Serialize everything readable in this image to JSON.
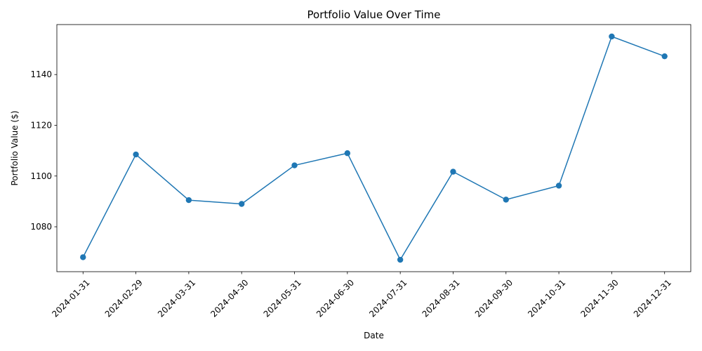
{
  "chart_data": {
    "type": "line",
    "title": "Portfolio Value Over Time",
    "xlabel": "Date",
    "ylabel": "Portfolio Value ($)",
    "x": [
      "2024-01-31",
      "2024-02-29",
      "2024-03-31",
      "2024-04-30",
      "2024-05-31",
      "2024-06-30",
      "2024-07-31",
      "2024-08-31",
      "2024-09-30",
      "2024-10-31",
      "2024-11-30",
      "2024-12-31"
    ],
    "series": [
      {
        "values": [
          1068.0,
          1108.5,
          1090.5,
          1089.0,
          1104.2,
          1109.0,
          1067.0,
          1101.7,
          1090.7,
          1096.2,
          1155.0,
          1147.2
        ],
        "color": "#1f77b4",
        "marker": "circle"
      }
    ],
    "ylim": [
      1062.3,
      1159.7
    ],
    "yticks": [
      1080,
      1100,
      1120,
      1140
    ],
    "grid": false,
    "legend": false
  }
}
